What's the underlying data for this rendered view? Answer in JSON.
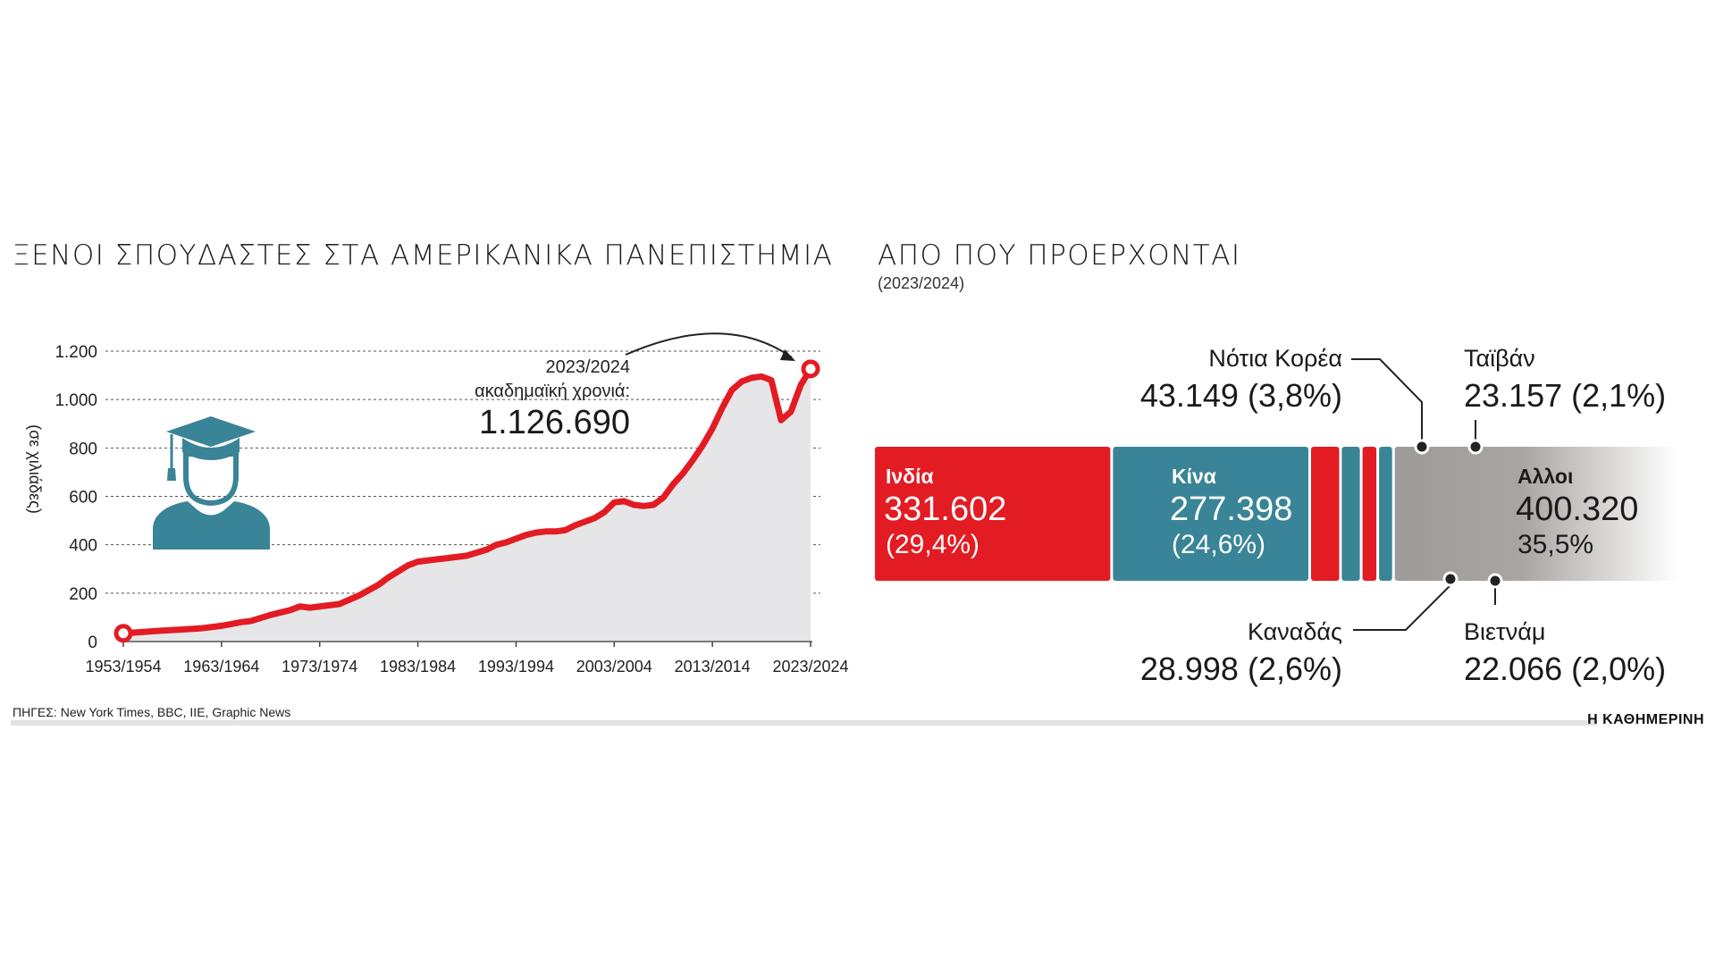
{
  "left_title": "ΞΕΝΟΙ ΣΠΟΥΔΑΣΤΕΣ ΣΤΑ ΑΜΕΡΙΚΑΝΙΚΑ ΠΑΝΕΠΙΣΤΗΜΙΑ",
  "right_title": "ΑΠΟ ΠΟΥ ΠΡΟΕΡΧΟΝΤΑΙ",
  "right_subtitle": "(2023/2024)",
  "source": "ΠΗΓΕΣ: New York Times, BBC, IIE, Graphic News",
  "brand": "Η ΚΑΘΗΜΕΡΙΝΗ",
  "colors": {
    "red": "#e31b23",
    "teal": "#3a8497",
    "grey": "#a19d9b",
    "area": "#e6e6e8",
    "grid": "#555555"
  },
  "icon": "graduate-icon",
  "chart_data": [
    {
      "type": "area",
      "title": "ΞΕΝΟΙ ΣΠΟΥΔΑΣΤΕΣ ΣΤΑ ΑΜΕΡΙΚΑΝΙΚΑ ΠΑΝΕΠΙΣΤΗΜΙΑ",
      "ylabel": "(σε χιλιάδες)",
      "ylim": [
        0,
        1200
      ],
      "yticks": [
        0,
        200,
        400,
        600,
        800,
        1000,
        1200
      ],
      "ytick_labels": [
        "0",
        "200",
        "400",
        "600",
        "800",
        "1.000",
        "1.200"
      ],
      "xlim": [
        1953,
        2023
      ],
      "xticks": [
        1953,
        1963,
        1973,
        1983,
        1993,
        2003,
        2013,
        2023
      ],
      "xtick_labels": [
        "1953/1954",
        "1963/1964",
        "1973/1974",
        "1983/1984",
        "1993/1994",
        "2003/2004",
        "2013/2014",
        "2023/2024"
      ],
      "grid": true,
      "annotation": {
        "line1": "2023/2024",
        "line2": "ακαδημαϊκή χρονιά:",
        "value": "1.126.690"
      },
      "x": [
        1953,
        1955,
        1957,
        1959,
        1961,
        1963,
        1965,
        1966,
        1968,
        1970,
        1971,
        1972,
        1974,
        1975,
        1977,
        1979,
        1980,
        1981,
        1982,
        1983,
        1985,
        1986,
        1988,
        1990,
        1991,
        1992,
        1994,
        1995,
        1996,
        1997,
        1998,
        1999,
        2001,
        2002,
        2003,
        2004,
        2005,
        2006,
        2007,
        2008,
        2009,
        2010,
        2011,
        2012,
        2013,
        2014,
        2015,
        2016,
        2017,
        2018,
        2019,
        2020,
        2021,
        2022,
        2023
      ],
      "y": [
        34,
        40,
        45,
        50,
        55,
        65,
        80,
        85,
        110,
        130,
        145,
        140,
        150,
        155,
        190,
        235,
        265,
        290,
        315,
        330,
        340,
        345,
        355,
        380,
        400,
        410,
        440,
        450,
        455,
        455,
        460,
        480,
        510,
        535,
        575,
        580,
        565,
        560,
        565,
        595,
        650,
        695,
        750,
        810,
        880,
        965,
        1040,
        1075,
        1090,
        1095,
        1080,
        915,
        950,
        1060,
        1126.69
      ]
    },
    {
      "type": "bar",
      "title": "ΑΠΟ ΠΟΥ ΠΡΟΕΡΧΟΝΤΑΙ",
      "subtitle": "(2023/2024)",
      "segments": [
        {
          "name": "Ινδία",
          "value": 331602,
          "value_label": "331.602",
          "pct_label": "(29,4%)"
        },
        {
          "name": "Κίνα",
          "value": 277398,
          "value_label": "277.398",
          "pct_label": "(24,6%)"
        },
        {
          "name": "Νότια Κορέα",
          "value": 43149,
          "label": "43.149 (3,8%)"
        },
        {
          "name": "Καναδάς",
          "value": 28998,
          "label": "28.998 (2,6%)"
        },
        {
          "name": "Ταϊβάν",
          "value": 23157,
          "label": "23.157 (2,1%)"
        },
        {
          "name": "Βιετνάμ",
          "value": 22066,
          "label": "22.066 (2,0%)"
        },
        {
          "name": "Αλλοι",
          "value": 400320,
          "value_label": "400.320",
          "pct_label": "35,5%"
        }
      ]
    }
  ]
}
